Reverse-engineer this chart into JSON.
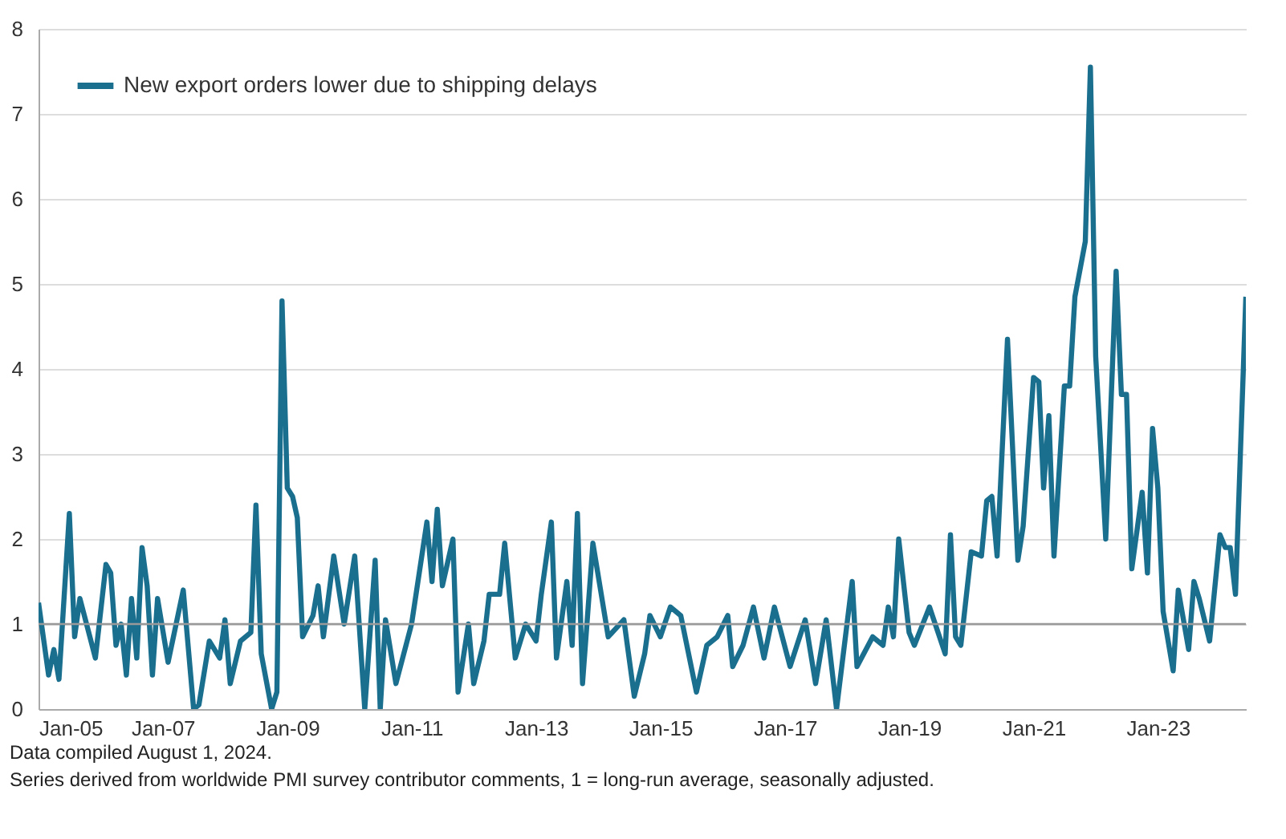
{
  "chart_data": {
    "type": "line",
    "x": [
      "2005-01",
      "2005-03",
      "2005-04",
      "2005-05",
      "2005-07",
      "2005-08",
      "2005-09",
      "2005-12",
      "2006-02",
      "2006-03",
      "2006-04",
      "2006-05",
      "2006-06",
      "2006-07",
      "2006-08",
      "2006-09",
      "2006-10",
      "2006-11",
      "2006-12",
      "2007-02",
      "2007-05",
      "2007-07",
      "2007-08",
      "2007-10",
      "2007-12",
      "2008-01",
      "2008-02",
      "2008-04",
      "2008-06",
      "2008-07",
      "2008-08",
      "2008-10",
      "2008-11",
      "2008-12",
      "2009-01",
      "2009-02",
      "2009-03",
      "2009-04",
      "2009-06",
      "2009-07",
      "2009-08",
      "2009-10",
      "2009-12",
      "2010-02",
      "2010-04",
      "2010-06",
      "2010-07",
      "2010-08",
      "2010-10",
      "2011-01",
      "2011-04",
      "2011-05",
      "2011-06",
      "2011-07",
      "2011-09",
      "2011-10",
      "2011-12",
      "2012-01",
      "2012-03",
      "2012-04",
      "2012-06",
      "2012-07",
      "2012-09",
      "2012-11",
      "2013-01",
      "2013-02",
      "2013-04",
      "2013-05",
      "2013-07",
      "2013-08",
      "2013-09",
      "2013-10",
      "2013-12",
      "2014-03",
      "2014-06",
      "2014-08",
      "2014-10",
      "2014-11",
      "2015-01",
      "2015-03",
      "2015-05",
      "2015-08",
      "2015-10",
      "2015-12",
      "2016-02",
      "2016-03",
      "2016-05",
      "2016-07",
      "2016-09",
      "2016-11",
      "2017-02",
      "2017-05",
      "2017-07",
      "2017-09",
      "2017-11",
      "2018-02",
      "2018-03",
      "2018-06",
      "2018-08",
      "2018-09",
      "2018-10",
      "2018-11",
      "2019-01",
      "2019-02",
      "2019-05",
      "2019-08",
      "2019-09",
      "2019-10",
      "2019-11",
      "2020-01",
      "2020-03",
      "2020-04",
      "2020-05",
      "2020-06",
      "2020-08",
      "2020-10",
      "2020-11",
      "2021-01",
      "2021-02",
      "2021-03",
      "2021-04",
      "2021-05",
      "2021-07",
      "2021-08",
      "2021-09",
      "2021-11",
      "2021-12",
      "2022-01",
      "2022-03",
      "2022-05",
      "2022-06",
      "2022-07",
      "2022-08",
      "2022-10",
      "2022-11",
      "2022-12",
      "2023-01",
      "2023-02",
      "2023-04",
      "2023-05",
      "2023-07",
      "2023-08",
      "2023-09",
      "2023-11",
      "2024-01",
      "2024-02",
      "2024-03",
      "2024-04",
      "2024-06"
    ],
    "series": [
      {
        "name": "New export orders lower due to shipping delays",
        "color": "#1a6f8f",
        "values": [
          1.25,
          0.4,
          0.7,
          0.35,
          2.3,
          0.85,
          1.3,
          0.6,
          1.7,
          1.6,
          0.75,
          1.0,
          0.4,
          1.3,
          0.6,
          1.9,
          1.45,
          0.4,
          1.3,
          0.55,
          1.4,
          0,
          0.05,
          0.8,
          0.6,
          1.05,
          0.3,
          0.8,
          0.9,
          2.4,
          0.65,
          0,
          0.2,
          4.8,
          2.6,
          2.5,
          2.25,
          0.85,
          1.1,
          1.45,
          0.85,
          1.8,
          1.0,
          1.8,
          0,
          1.75,
          0,
          1.05,
          0.3,
          1.0,
          2.2,
          1.5,
          2.35,
          1.45,
          2.0,
          0.2,
          1.0,
          0.3,
          0.8,
          1.35,
          1.35,
          1.95,
          0.6,
          1.0,
          0.8,
          1.35,
          2.2,
          0.6,
          1.5,
          0.75,
          2.3,
          0.3,
          1.95,
          0.85,
          1.05,
          0.15,
          0.65,
          1.1,
          0.85,
          1.2,
          1.1,
          0.2,
          0.75,
          0.85,
          1.1,
          0.5,
          0.75,
          1.2,
          0.6,
          1.2,
          0.5,
          1.05,
          0.3,
          1.05,
          0,
          1.5,
          0.5,
          0.85,
          0.75,
          1.2,
          0.85,
          2.0,
          0.9,
          0.75,
          1.2,
          0.65,
          2.05,
          0.85,
          0.75,
          1.85,
          1.8,
          2.45,
          2.5,
          1.8,
          4.35,
          1.75,
          2.15,
          3.9,
          3.85,
          2.6,
          3.45,
          1.8,
          3.8,
          3.8,
          4.85,
          5.5,
          7.55,
          4.15,
          2.0,
          5.15,
          3.7,
          3.7,
          1.65,
          2.55,
          1.6,
          3.3,
          2.6,
          1.15,
          0.45,
          1.4,
          0.7,
          1.5,
          1.3,
          0.8,
          2.05,
          1.9,
          1.9,
          1.35,
          4.85
        ]
      }
    ],
    "xlim": [
      "2005-01",
      "2024-06"
    ],
    "xticks": [
      {
        "value": "2005-01",
        "label": "Jan-05"
      },
      {
        "value": "2007-01",
        "label": "Jan-07"
      },
      {
        "value": "2009-01",
        "label": "Jan-09"
      },
      {
        "value": "2011-01",
        "label": "Jan-11"
      },
      {
        "value": "2013-01",
        "label": "Jan-13"
      },
      {
        "value": "2015-01",
        "label": "Jan-15"
      },
      {
        "value": "2017-01",
        "label": "Jan-17"
      },
      {
        "value": "2019-01",
        "label": "Jan-19"
      },
      {
        "value": "2021-01",
        "label": "Jan-21"
      },
      {
        "value": "2023-01",
        "label": "Jan-23"
      }
    ],
    "ylim": [
      0,
      8
    ],
    "yticks": [
      0,
      1,
      2,
      3,
      4,
      5,
      6,
      7,
      8
    ],
    "grid": "y",
    "legend": "top left",
    "ref_lines": [
      {
        "axis": "y",
        "value": 1,
        "color": "#999999"
      }
    ],
    "annotations": [
      "Data compiled August 1, 2024.",
      "Series derived from worldwide PMI survey contributor comments, 1 = long-run average, seasonally adjusted."
    ]
  }
}
